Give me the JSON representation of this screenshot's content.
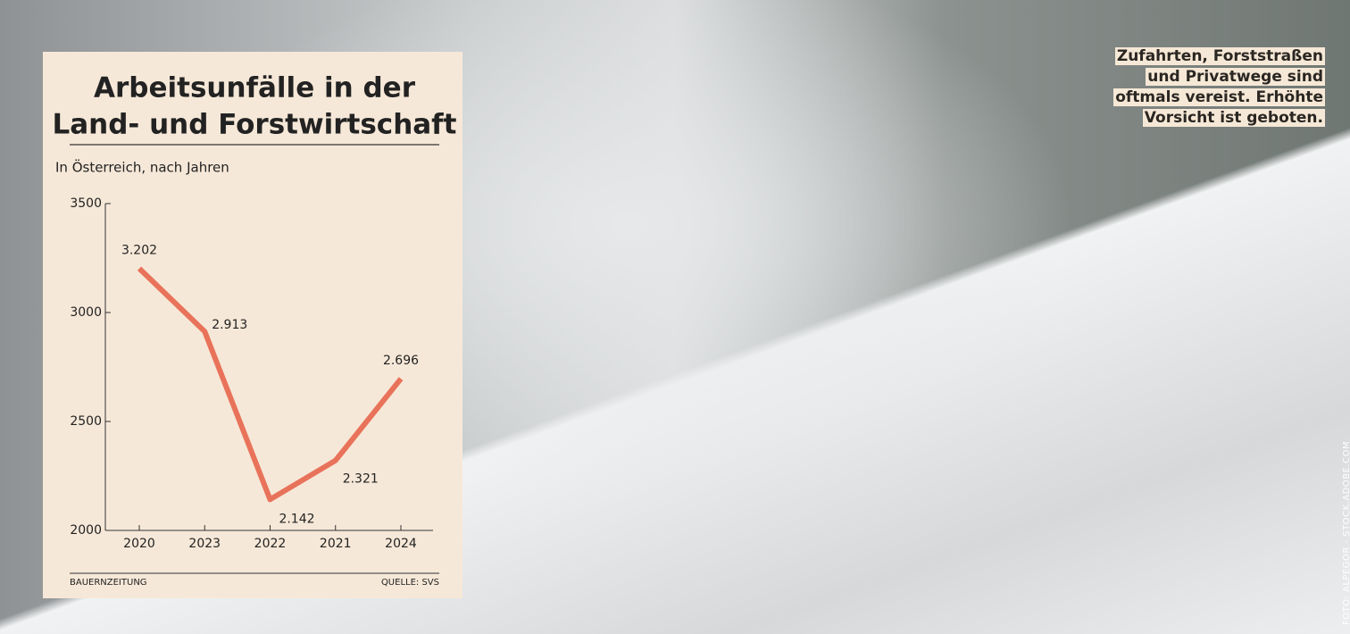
{
  "chart_data": {
    "type": "line",
    "title": [
      "Arbeitsunfälle in der",
      "Land- und Forstwirtschaft"
    ],
    "subtitle": "In Österreich, nach Jahren",
    "categories": [
      "2020",
      "2023",
      "2022",
      "2021",
      "2024"
    ],
    "values": [
      3202,
      2913,
      2142,
      2321,
      2696
    ],
    "value_labels": [
      "3.202",
      "2.913",
      "2.142",
      "2.321",
      "2.696"
    ],
    "color": "#e8735a",
    "ylim": [
      2000,
      3500
    ],
    "yticks": [
      2000,
      2500,
      3000,
      3500
    ],
    "source_left": "BAUERNZEITUNG",
    "source_right": "QUELLE: SVS"
  },
  "caption": [
    "Zufahrten, Forststraßen",
    "und Privatwege sind",
    "oftmals vereist. Erhöhte",
    "Vorsicht ist geboten."
  ],
  "credit": "FOTO: ALPEGOR - STOCK.ADOBE.COM"
}
